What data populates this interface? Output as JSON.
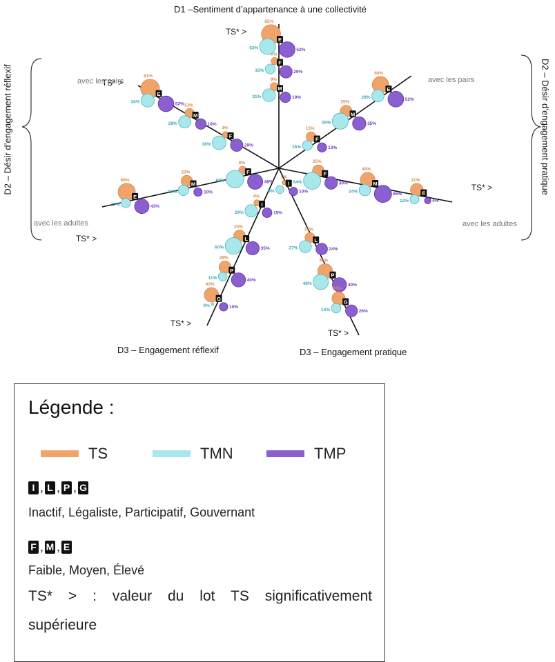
{
  "diagram": {
    "title_d1": "D1 –Sentiment d’appartenance à une collectivité",
    "title_d2_left": "D2 – Désir d’engagement réflexif",
    "title_d2_right": "D2 – Désir d’engagement pratique",
    "title_d3_left": "D3 – Engagement réflexif",
    "title_d3_right": "D3 – Engagement pratique",
    "label_pairs": "avec les pairs",
    "label_adults": "avec les adultes",
    "ts_marker": "TS* >",
    "colors": {
      "TS": "#F0A46A",
      "TMN": "#A8E8EC",
      "TMP": "#8B5FD0"
    },
    "axes": [
      {
        "id": "d1",
        "groups": [
          {
            "badge": "M",
            "ts": "9%",
            "tmn": "31%",
            "tmp": "19%"
          },
          {
            "badge": "F",
            "ts": "6%",
            "tmn": "16%",
            "tmp": "29%"
          },
          {
            "badge": "E",
            "ts": "85%",
            "tmn": "53%",
            "tmp": "52%"
          }
        ]
      },
      {
        "id": "d2-pairs-left",
        "groups": [
          {
            "badge": "F",
            "ts": "4%",
            "tmn": "38%",
            "tmp": "29%"
          },
          {
            "badge": "M",
            "ts": "13%",
            "tmn": "28%",
            "tmp": "19%"
          },
          {
            "badge": "E",
            "ts": "81%",
            "tmn": "34%",
            "tmp": "52%"
          }
        ]
      },
      {
        "id": "d2-adults-left",
        "groups": [
          {
            "badge": "F",
            "ts": "8%",
            "tmn": "69%",
            "tmp": "48%"
          },
          {
            "badge": "M",
            "ts": "23%",
            "tmn": "19%",
            "tmp": "10%"
          },
          {
            "badge": "E",
            "ts": "66%",
            "tmn": "13%",
            "tmp": "43%"
          }
        ]
      },
      {
        "id": "d3-left",
        "groups": [
          {
            "badge": "I",
            "ts": "4%",
            "tmn": "29%",
            "tmp": "15%"
          },
          {
            "badge": "L",
            "ts": "25%",
            "tmn": "60%",
            "tmp": "35%"
          },
          {
            "badge": "P",
            "ts": "28%",
            "tmn": "11%",
            "tmp": "40%"
          },
          {
            "badge": "G",
            "ts": "43%",
            "tmn": "0%",
            "tmp": "10%"
          }
        ]
      },
      {
        "id": "d3-right",
        "groups": [
          {
            "badge": "I",
            "ts": "1%",
            "tmn": "9%",
            "tmp": "10%"
          },
          {
            "badge": "L",
            "ts": "16%",
            "tmn": "27%",
            "tmp": "24%"
          },
          {
            "badge": "P",
            "ts": "46%",
            "tmn": "48%",
            "tmp": "40%"
          },
          {
            "badge": "G",
            "ts": "34%",
            "tmn": "14%",
            "tmp": "26%"
          }
        ]
      },
      {
        "id": "d2-adults-right",
        "groups": [
          {
            "badge": "F",
            "ts": "25%",
            "tmn": "64%",
            "tmp": "30%"
          },
          {
            "badge": "M",
            "ts": "44%",
            "tmn": "24%",
            "tmp": "65%"
          },
          {
            "badge": "E",
            "ts": "31%",
            "tmn": "12%",
            "tmp": "4%"
          }
        ]
      },
      {
        "id": "d2-pairs-right",
        "groups": [
          {
            "badge": "F",
            "ts": "15%",
            "tmn": "16%",
            "tmp": "13%"
          },
          {
            "badge": "M",
            "ts": "25%",
            "tmn": "56%",
            "tmp": "35%"
          },
          {
            "badge": "E",
            "ts": "60%",
            "tmn": "28%",
            "tmp": "52%"
          }
        ]
      }
    ]
  },
  "legend": {
    "title": "Légende :",
    "series": [
      {
        "name": "TS",
        "color": "#F0A46A"
      },
      {
        "name": "TMN",
        "color": "#A8E8EC"
      },
      {
        "name": "TMP",
        "color": "#8B5FD0"
      }
    ],
    "badges_d3": [
      "I",
      "L",
      "P",
      "G"
    ],
    "badges_d3_text": "Inactif, Légaliste, Participatif, Gouvernant",
    "badges_d12": [
      "F",
      "M",
      "E"
    ],
    "badges_d12_text": "Faible, Moyen, Élevé",
    "ts_note_line1": "TS* > : valeur du lot TS significativement",
    "ts_note_line2": "supérieure"
  }
}
